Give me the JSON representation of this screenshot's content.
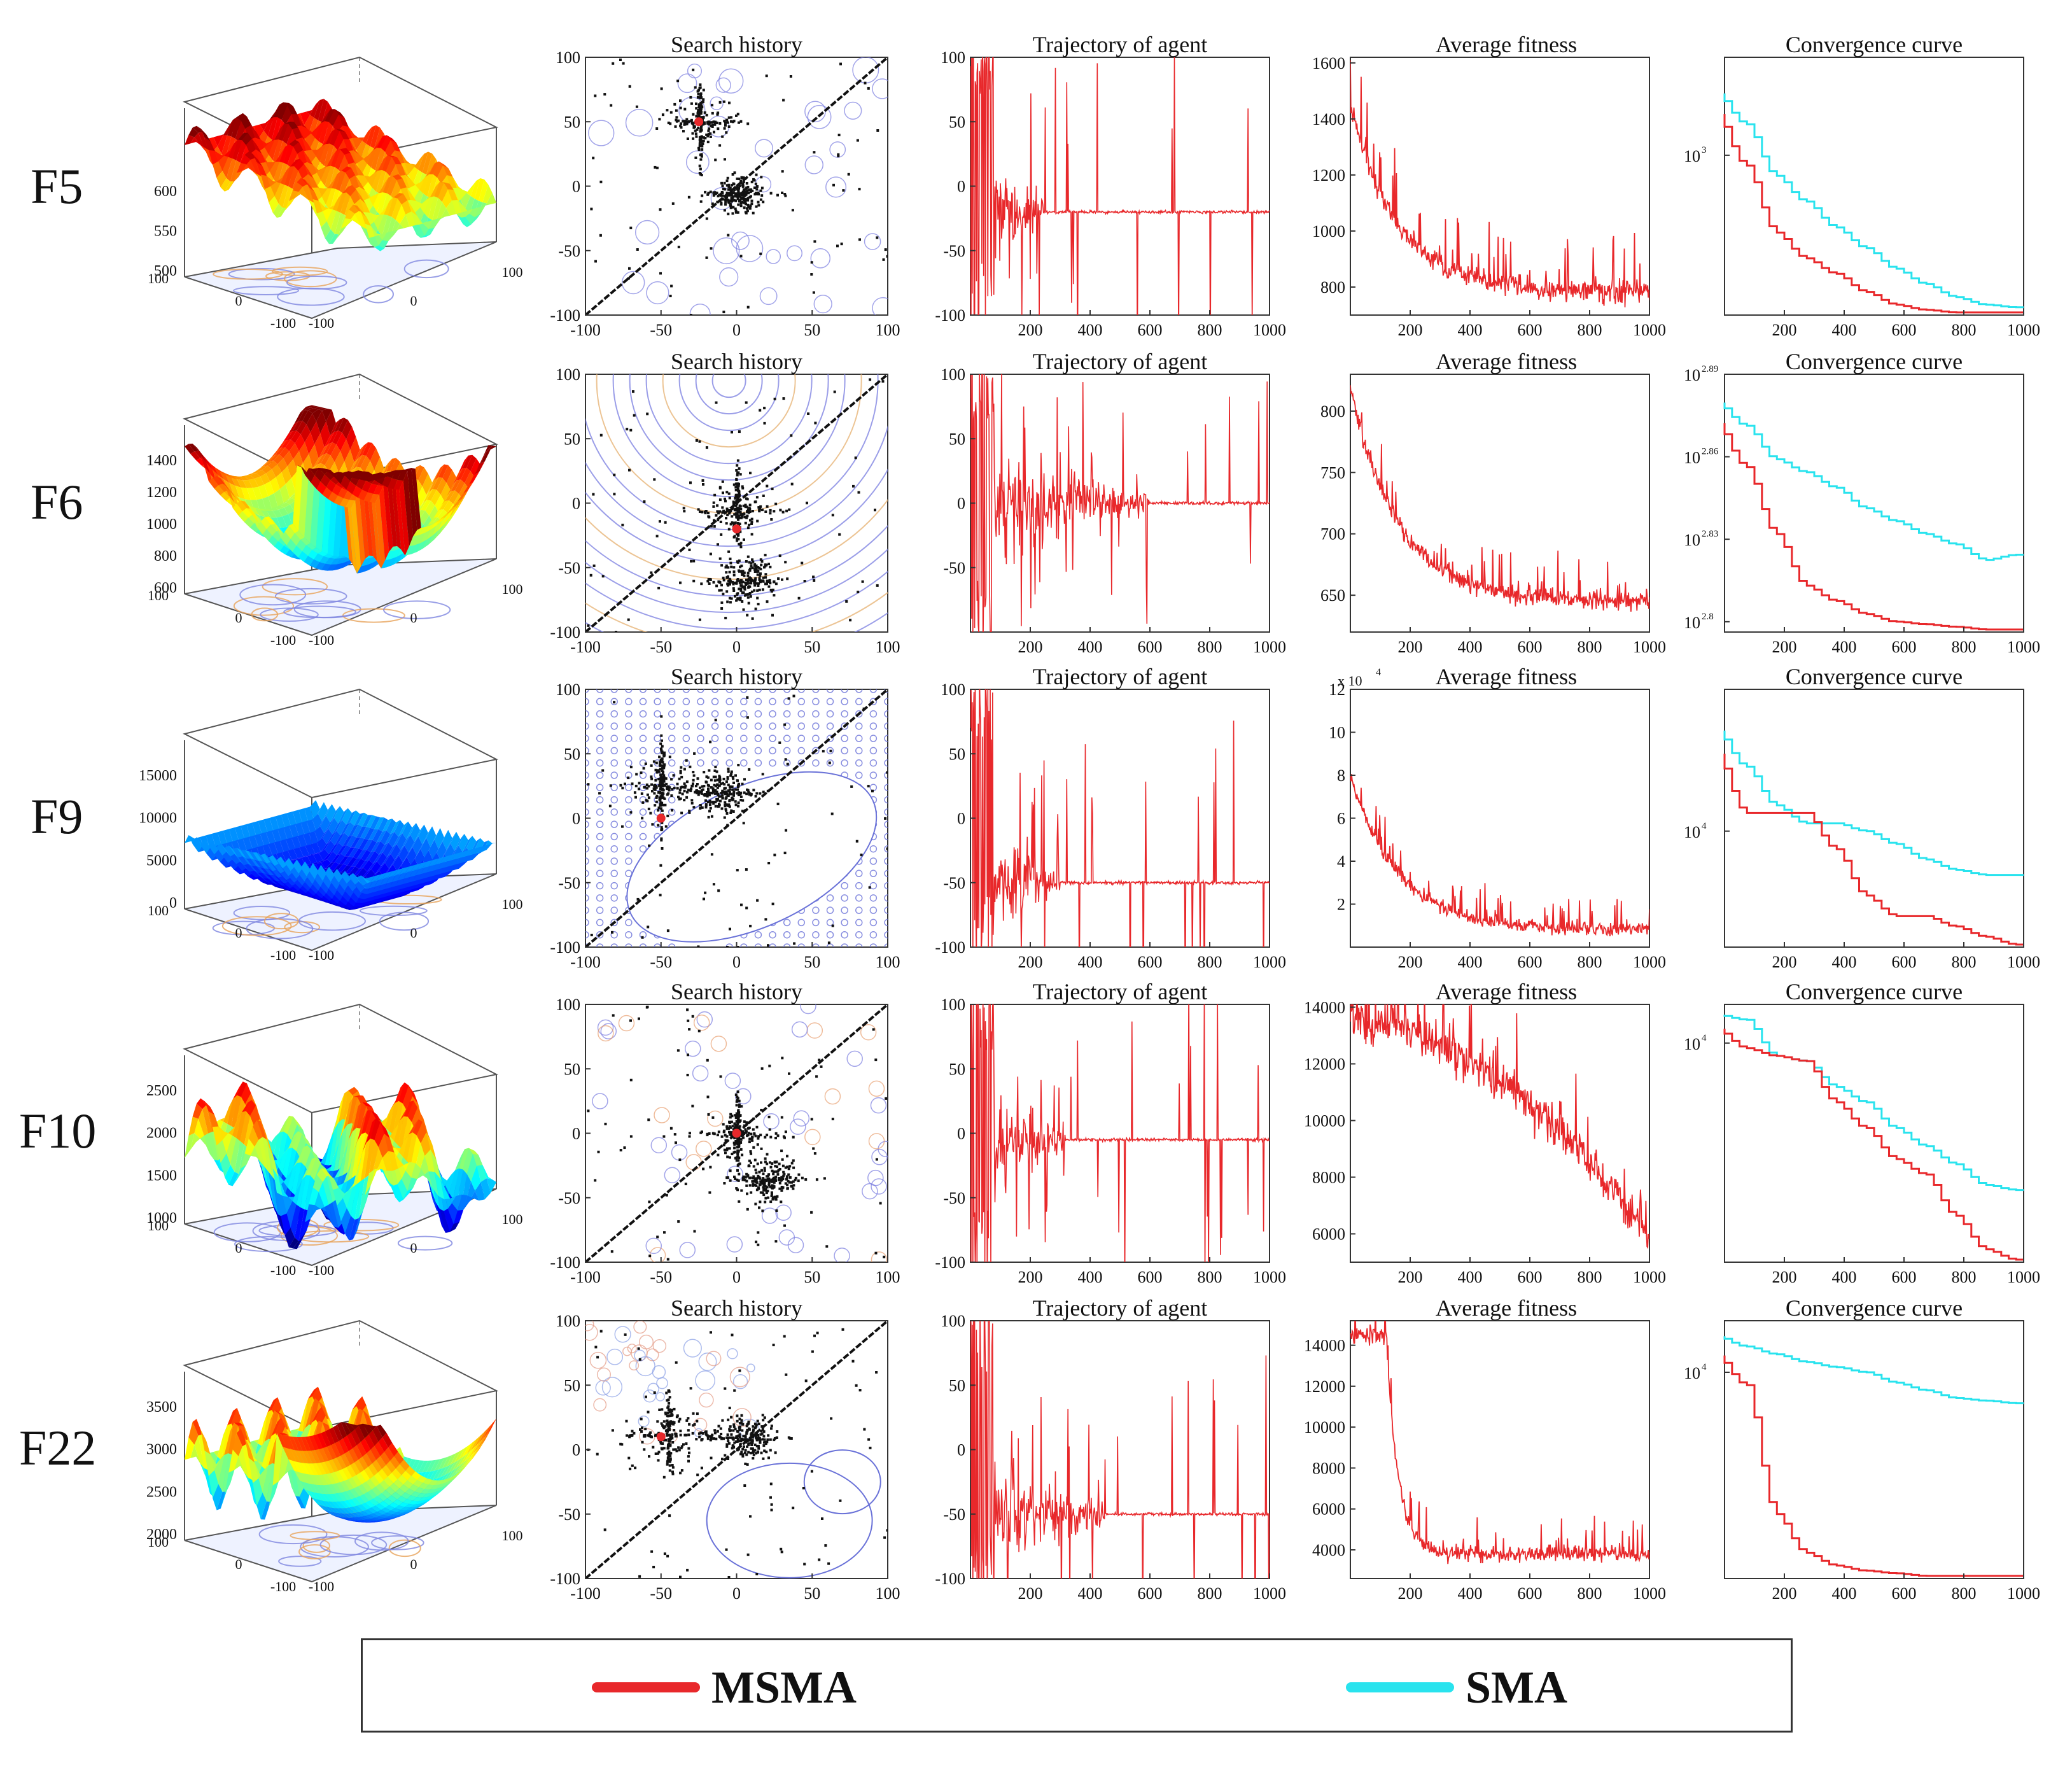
{
  "functions": [
    "F5",
    "F6",
    "F9",
    "F10",
    "F22"
  ],
  "panel_titles": {
    "search": "Search history",
    "trajectory": "Trajectory of agent",
    "fitness": "Average fitness",
    "convergence": "Convergence curve"
  },
  "legend": [
    {
      "name": "MSMA",
      "color": "#e8282b"
    },
    {
      "name": "SMA",
      "color": "#29e3ee"
    }
  ],
  "colors": {
    "msma": "#e8282b",
    "sma": "#29e3ee",
    "surface_blue": "#1030c8",
    "contour": "#7070d8"
  },
  "chart_data": [
    {
      "type": "line",
      "function": "F5",
      "surface": {
        "type": "surface3d",
        "z_ticks": [
          "500",
          "550",
          "600"
        ],
        "xy_ticks": [
          "100",
          "0",
          "-100",
          "-100",
          "0",
          "100"
        ]
      },
      "search_history": {
        "type": "scatter",
        "title": "Search history",
        "xlim": [
          -100,
          100
        ],
        "ylim": [
          -100,
          100
        ],
        "x_ticks": [
          "-100",
          "-50",
          "0",
          "50",
          "100"
        ],
        "y_ticks": [
          "100",
          "50",
          "0",
          "-50",
          "-100"
        ],
        "clusters": [
          {
            "x": -25,
            "y": 50,
            "spread": 22
          },
          {
            "x": 0,
            "y": -5,
            "spread": 14
          }
        ],
        "best": [
          -25,
          50
        ]
      },
      "trajectory": {
        "type": "line",
        "title": "Trajectory of agent",
        "xlim": [
          0,
          1000
        ],
        "ylim": [
          -100,
          100
        ],
        "x_ticks": [
          "200",
          "400",
          "600",
          "800",
          "1000"
        ],
        "y_ticks": [
          "100",
          "50",
          "0",
          "-50",
          "-100"
        ],
        "settle": -20,
        "settle_iter": 250
      },
      "average_fitness": {
        "type": "line",
        "title": "Average fitness",
        "xlim": [
          0,
          1000
        ],
        "ylim": [
          700,
          1620
        ],
        "x_ticks": [
          "200",
          "400",
          "600",
          "800",
          "1000"
        ],
        "y_ticks": [
          "1600",
          "1400",
          "1200",
          "1000",
          "800"
        ],
        "y_tick_values": [
          1600,
          1400,
          1200,
          1000,
          800
        ],
        "start": 1450,
        "end": 780,
        "noise": 120
      },
      "convergence": {
        "type": "line",
        "title": "Convergence curve",
        "scale": "log",
        "x_ticks": [
          "200",
          "400",
          "600",
          "800",
          "1000"
        ],
        "y_tick_labels": [
          {
            "base": "10",
            "exp": "3",
            "pos": 0.38
          }
        ],
        "series": [
          {
            "name": "SMA",
            "values": [
              0.26,
              0.46,
              0.56,
              0.66,
              0.74,
              0.82,
              0.88,
              0.93,
              0.96,
              0.97
            ]
          },
          {
            "name": "MSMA",
            "values": [
              0.42,
              0.68,
              0.78,
              0.84,
              0.91,
              0.96,
              0.98,
              0.99,
              0.99,
              0.99
            ]
          }
        ]
      }
    },
    {
      "type": "line",
      "function": "F6",
      "surface": {
        "type": "surface3d",
        "z_ticks": [
          "600",
          "800",
          "1000",
          "1200",
          "1400"
        ],
        "xy_ticks": [
          "100",
          "0",
          "-100",
          "-100",
          "0",
          "100"
        ]
      },
      "search_history": {
        "type": "scatter",
        "title": "Search history",
        "xlim": [
          -100,
          100
        ],
        "ylim": [
          -100,
          100
        ],
        "x_ticks": [
          "-100",
          "-50",
          "0",
          "50",
          "100"
        ],
        "y_ticks": [
          "100",
          "50",
          "0",
          "-50",
          "-100"
        ],
        "clusters": [
          {
            "x": 0,
            "y": -5,
            "spread": 22
          },
          {
            "x": 5,
            "y": -60,
            "spread": 20
          }
        ],
        "best": [
          0,
          -20
        ]
      },
      "trajectory": {
        "type": "line",
        "title": "Trajectory of agent",
        "xlim": [
          0,
          1000
        ],
        "ylim": [
          -100,
          100
        ],
        "x_ticks": [
          "200",
          "400",
          "600",
          "800",
          "1000"
        ],
        "y_ticks": [
          "100",
          "50",
          "0",
          "-50"
        ],
        "settle": 0,
        "settle_iter": 600
      },
      "average_fitness": {
        "type": "line",
        "title": "Average fitness",
        "xlim": [
          0,
          1000
        ],
        "ylim": [
          620,
          830
        ],
        "x_ticks": [
          "200",
          "400",
          "600",
          "800",
          "1000"
        ],
        "y_ticks": [
          "800",
          "750",
          "700",
          "650"
        ],
        "y_tick_values": [
          800,
          750,
          700,
          650
        ],
        "start": 820,
        "end": 645,
        "noise": 22
      },
      "convergence": {
        "type": "line",
        "title": "Convergence curve",
        "scale": "log",
        "x_ticks": [
          "200",
          "400",
          "600",
          "800",
          "1000"
        ],
        "y_tick_labels": [
          {
            "base": "10",
            "exp": "2.89",
            "pos": 0.0
          },
          {
            "base": "10",
            "exp": "2.86",
            "pos": 0.32
          },
          {
            "base": "10",
            "exp": "2.83",
            "pos": 0.64
          },
          {
            "base": "10",
            "exp": "2.8",
            "pos": 0.96
          }
        ],
        "series": [
          {
            "name": "SMA",
            "values": [
              0.2,
              0.33,
              0.38,
              0.44,
              0.52,
              0.57,
              0.62,
              0.66,
              0.72,
              0.7
            ]
          },
          {
            "name": "MSMA",
            "values": [
              0.36,
              0.62,
              0.82,
              0.88,
              0.93,
              0.96,
              0.97,
              0.98,
              0.99,
              0.99
            ]
          }
        ]
      }
    },
    {
      "type": "line",
      "function": "F9",
      "surface": {
        "type": "surface3d",
        "z_ticks": [
          "0",
          "5000",
          "10000",
          "15000"
        ],
        "xy_ticks": [
          "100",
          "0",
          "-100",
          "-100",
          "0",
          "100"
        ]
      },
      "search_history": {
        "type": "scatter",
        "title": "Search history",
        "xlim": [
          -100,
          100
        ],
        "ylim": [
          -100,
          100
        ],
        "x_ticks": [
          "-100",
          "-50",
          "0",
          "50",
          "100"
        ],
        "y_ticks": [
          "100",
          "50",
          "0",
          "-50",
          "-100"
        ],
        "clusters": [
          {
            "x": -50,
            "y": 25,
            "spread": 24
          },
          {
            "x": -10,
            "y": 20,
            "spread": 20
          }
        ],
        "best": [
          -50,
          0
        ]
      },
      "trajectory": {
        "type": "line",
        "title": "Trajectory of agent",
        "xlim": [
          0,
          1000
        ],
        "ylim": [
          -100,
          100
        ],
        "x_ticks": [
          "200",
          "400",
          "600",
          "800",
          "1000"
        ],
        "y_ticks": [
          "100",
          "50",
          "0",
          "-50",
          "-100"
        ],
        "settle": -50,
        "settle_iter": 300
      },
      "average_fitness": {
        "type": "line",
        "title": "Average fitness",
        "exponent_label": "x 10",
        "exponent": "4",
        "xlim": [
          0,
          1000
        ],
        "ylim": [
          0,
          12
        ],
        "x_ticks": [
          "200",
          "400",
          "600",
          "800",
          "1000"
        ],
        "y_ticks": [
          "12",
          "10",
          "8",
          "6",
          "4",
          "2"
        ],
        "y_tick_values": [
          12,
          10,
          8,
          6,
          4,
          2
        ],
        "start": 8,
        "end": 0.8,
        "noise": 0.9
      },
      "convergence": {
        "type": "line",
        "title": "Convergence curve",
        "scale": "log",
        "x_ticks": [
          "200",
          "400",
          "600",
          "800",
          "1000"
        ],
        "y_tick_labels": [
          {
            "base": "10",
            "exp": "4",
            "pos": 0.55
          }
        ],
        "series": [
          {
            "name": "SMA",
            "values": [
              0.3,
              0.45,
              0.52,
              0.52,
              0.55,
              0.6,
              0.66,
              0.7,
              0.72,
              0.72
            ]
          },
          {
            "name": "MSMA",
            "values": [
              0.48,
              0.48,
              0.48,
              0.62,
              0.8,
              0.88,
              0.88,
              0.92,
              0.96,
              0.99
            ]
          }
        ]
      }
    },
    {
      "type": "line",
      "function": "F10",
      "surface": {
        "type": "surface3d",
        "z_ticks": [
          "1000",
          "1500",
          "2000",
          "2500"
        ],
        "xy_ticks": [
          "100",
          "0",
          "-100",
          "-100",
          "0",
          "100"
        ]
      },
      "search_history": {
        "type": "scatter",
        "title": "Search history",
        "xlim": [
          -100,
          100
        ],
        "ylim": [
          -100,
          100
        ],
        "x_ticks": [
          "-100",
          "-50",
          "0",
          "50",
          "100"
        ],
        "y_ticks": [
          "100",
          "50",
          "0",
          "-50",
          "-100"
        ],
        "clusters": [
          {
            "x": 0,
            "y": 0,
            "spread": 16
          },
          {
            "x": 20,
            "y": -35,
            "spread": 18
          }
        ],
        "best": [
          0,
          0
        ]
      },
      "trajectory": {
        "type": "line",
        "title": "Trajectory of agent",
        "xlim": [
          0,
          1000
        ],
        "ylim": [
          -100,
          100
        ],
        "x_ticks": [
          "200",
          "400",
          "600",
          "800",
          "1000"
        ],
        "y_ticks": [
          "100",
          "50",
          "0",
          "-50",
          "-100"
        ],
        "settle": -5,
        "settle_iter": 320
      },
      "average_fitness": {
        "type": "line",
        "title": "Average fitness",
        "xlim": [
          0,
          1000
        ],
        "ylim": [
          5000,
          14100
        ],
        "x_ticks": [
          "200",
          "400",
          "600",
          "800",
          "1000"
        ],
        "y_ticks": [
          "14000",
          "12000",
          "10000",
          "8000",
          "6000"
        ],
        "y_tick_values": [
          14000,
          12000,
          10000,
          8000,
          6000
        ],
        "start": 13500,
        "end": 6000,
        "noise": 1500
      },
      "convergence": {
        "type": "line",
        "title": "Convergence curve",
        "scale": "log",
        "x_ticks": [
          "200",
          "400",
          "600",
          "800",
          "1000"
        ],
        "y_tick_labels": [
          {
            "base": "10",
            "exp": "4",
            "pos": 0.15
          }
        ],
        "series": [
          {
            "name": "SMA",
            "values": [
              0.06,
              0.2,
              0.22,
              0.32,
              0.38,
              0.48,
              0.55,
              0.62,
              0.7,
              0.72
            ]
          },
          {
            "name": "MSMA",
            "values": [
              0.17,
              0.2,
              0.22,
              0.38,
              0.48,
              0.6,
              0.66,
              0.82,
              0.95,
              0.99
            ]
          }
        ]
      }
    },
    {
      "type": "line",
      "function": "F22",
      "surface": {
        "type": "surface3d",
        "z_ticks": [
          "2000",
          "2500",
          "3000",
          "3500"
        ],
        "xy_ticks": [
          "100",
          "0",
          "-100",
          "-100",
          "0",
          "100"
        ]
      },
      "search_history": {
        "type": "scatter",
        "title": "Search history",
        "xlim": [
          -100,
          100
        ],
        "ylim": [
          -100,
          100
        ],
        "x_ticks": [
          "-100",
          "-50",
          "0",
          "50",
          "100"
        ],
        "y_ticks": [
          "100",
          "50",
          "0",
          "-50",
          "-100"
        ],
        "clusters": [
          {
            "x": -45,
            "y": 12,
            "spread": 30
          },
          {
            "x": 5,
            "y": 10,
            "spread": 16
          }
        ],
        "best": [
          -50,
          10
        ]
      },
      "trajectory": {
        "type": "line",
        "title": "Trajectory of agent",
        "xlim": [
          0,
          1000
        ],
        "ylim": [
          -100,
          100
        ],
        "x_ticks": [
          "200",
          "400",
          "600",
          "800",
          "1000"
        ],
        "y_ticks": [
          "100",
          "50",
          "0",
          "-50",
          "-100"
        ],
        "settle": -50,
        "settle_iter": 450
      },
      "average_fitness": {
        "type": "line",
        "title": "Average fitness",
        "xlim": [
          0,
          1000
        ],
        "ylim": [
          2600,
          15200
        ],
        "x_ticks": [
          "200",
          "400",
          "600",
          "800",
          "1000"
        ],
        "y_ticks": [
          "14000",
          "12000",
          "10000",
          "8000",
          "6000",
          "4000"
        ],
        "y_tick_values": [
          14000,
          12000,
          10000,
          8000,
          6000,
          4000
        ],
        "start": 14500,
        "end": 3800,
        "noise": 1100,
        "drop_at": 120
      },
      "convergence": {
        "type": "line",
        "title": "Convergence curve",
        "scale": "log",
        "x_ticks": [
          "200",
          "400",
          "600",
          "800",
          "1000"
        ],
        "y_tick_labels": [
          {
            "base": "10",
            "exp": "4",
            "pos": 0.2
          }
        ],
        "series": [
          {
            "name": "SMA",
            "values": [
              0.1,
              0.13,
              0.16,
              0.18,
              0.2,
              0.24,
              0.27,
              0.3,
              0.31,
              0.32
            ]
          },
          {
            "name": "MSMA",
            "values": [
              0.25,
              0.75,
              0.9,
              0.95,
              0.97,
              0.98,
              0.99,
              0.99,
              0.99,
              0.99
            ]
          }
        ]
      }
    }
  ]
}
